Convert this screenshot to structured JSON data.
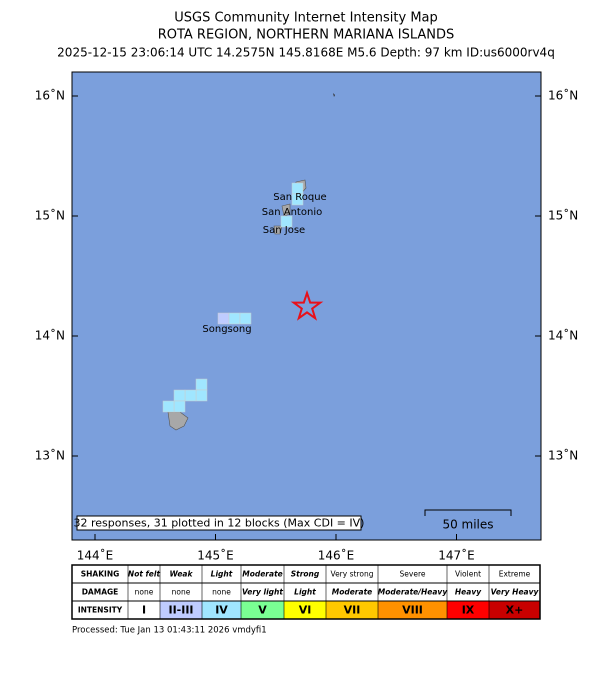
{
  "header": {
    "title": "USGS Community Internet Intensity Map",
    "region": "ROTA REGION, NORTHERN MARIANA ISLANDS",
    "event": "2025-12-15 23:06:14 UTC 14.2575N 145.8168E M5.6 Depth: 97 km ID:us6000rv4q"
  },
  "map": {
    "lat_ticks": [
      {
        "value": 16,
        "label": "16˚N"
      },
      {
        "value": 15,
        "label": "15˚N"
      },
      {
        "value": 14,
        "label": "14˚N"
      },
      {
        "value": 13,
        "label": "13˚N"
      }
    ],
    "lon_ticks": [
      {
        "value": 144,
        "label": "144˚E"
      },
      {
        "value": 145,
        "label": "145˚E"
      },
      {
        "value": 146,
        "label": "146˚E"
      },
      {
        "value": 147,
        "label": "147˚E"
      }
    ],
    "places": [
      "San Roque",
      "San Antonio",
      "San Jose",
      "Songsong"
    ],
    "responses": "32 responses, 31 plotted in 12 blocks (Max CDI = IV)",
    "scale_bar": "50 miles"
  },
  "legend": {
    "row_labels": [
      "SHAKING",
      "DAMAGE",
      "INTENSITY"
    ],
    "columns": [
      {
        "shaking": "Not felt",
        "damage": "none",
        "intensity": "I",
        "color": "#ffffff"
      },
      {
        "shaking": "Weak",
        "damage": "none",
        "intensity": "II-III",
        "color": "#bfccff"
      },
      {
        "shaking": "Light",
        "damage": "none",
        "intensity": "IV",
        "color": "#a0e6ff"
      },
      {
        "shaking": "Moderate",
        "damage": "Very light",
        "intensity": "V",
        "color": "#7aff93"
      },
      {
        "shaking": "Strong",
        "damage": "Light",
        "intensity": "VI",
        "color": "#ffff00"
      },
      {
        "shaking": "Very strong",
        "damage": "Moderate",
        "intensity": "VII",
        "color": "#ffc800"
      },
      {
        "shaking": "Severe",
        "damage": "Moderate/Heavy",
        "intensity": "VIII",
        "color": "#ff9100"
      },
      {
        "shaking": "Violent",
        "damage": "Heavy",
        "intensity": "IX",
        "color": "#ff0000"
      },
      {
        "shaking": "Extreme",
        "damage": "Very Heavy",
        "intensity": "X+",
        "color": "#c80000"
      }
    ]
  },
  "footer": "Processed: Tue Jan 13 01:43:11 2026 vmdyfi1"
}
